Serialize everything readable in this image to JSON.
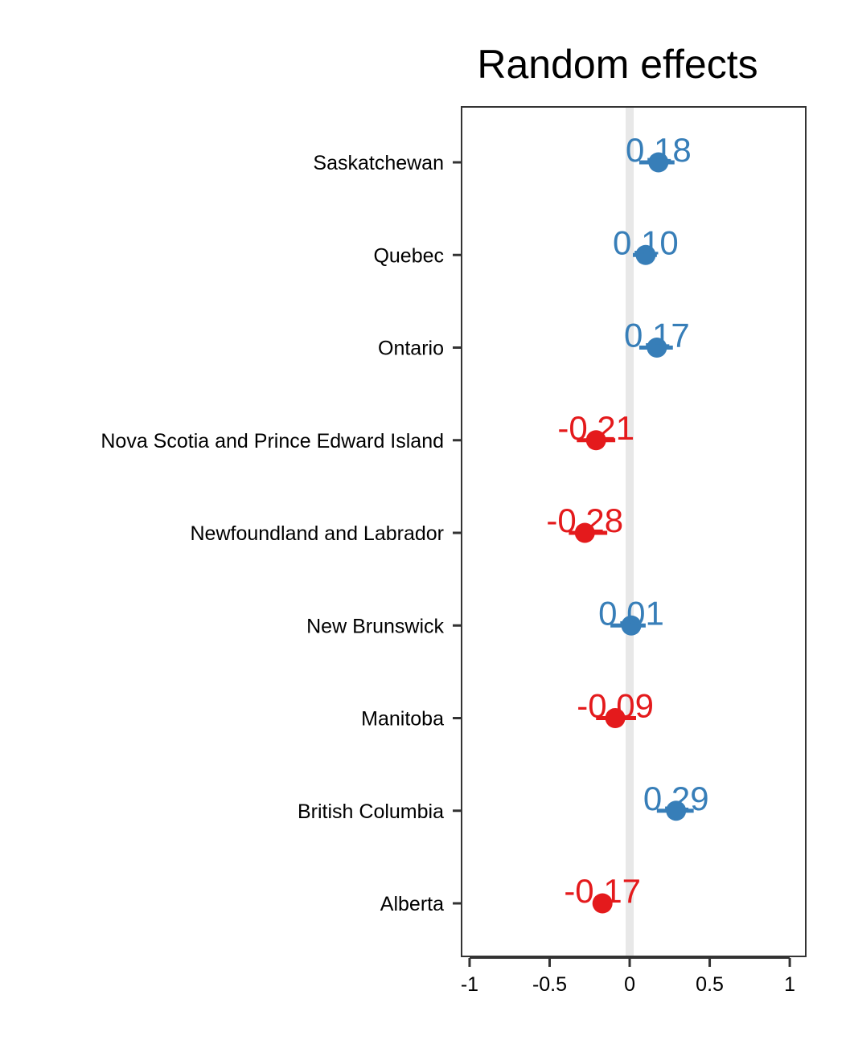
{
  "chart_data": {
    "type": "forest",
    "title": "Random effects",
    "xlabel": "",
    "ylabel": "",
    "xlim": [
      -1.05,
      1.1
    ],
    "x_ticks": [
      -1,
      -0.5,
      0,
      0.5,
      1
    ],
    "x_tick_labels": [
      "-1",
      "-0.5",
      "0",
      "0.5",
      "1"
    ],
    "reference_line": 0,
    "grid": false,
    "colors": {
      "positive": "#377eb8",
      "negative": "#e41a1c",
      "reference": "#e8e8e8",
      "axis": "#333333"
    },
    "categories": [
      "Saskatchewan",
      "Quebec",
      "Ontario",
      "Nova Scotia and Prince Edward Island",
      "Newfoundland and Labrador",
      "New Brunswick",
      "Manitoba",
      "British Columbia",
      "Alberta"
    ],
    "values": [
      0.18,
      0.1,
      0.17,
      -0.21,
      -0.28,
      0.01,
      -0.09,
      0.29,
      -0.17
    ],
    "value_labels": [
      "0.18",
      "0.10",
      "0.17",
      "-0.21",
      "-0.28",
      "0.01",
      "-0.09",
      "0.29",
      "-0.17"
    ],
    "ci_low": [
      0.06,
      0.02,
      0.06,
      -0.33,
      -0.38,
      -0.12,
      -0.21,
      0.17,
      -0.23
    ],
    "ci_high": [
      0.28,
      0.17,
      0.27,
      -0.09,
      -0.14,
      0.1,
      0.04,
      0.4,
      -0.13
    ]
  }
}
